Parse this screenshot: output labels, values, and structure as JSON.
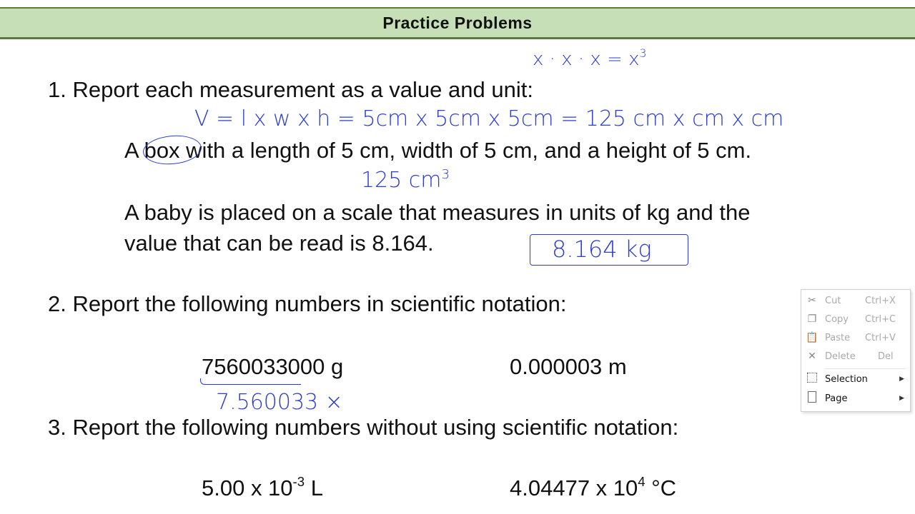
{
  "header": {
    "title": "Practice Problems"
  },
  "content": {
    "q1": "1. Report each measurement as a value and unit:",
    "q1a": "A box with a length of 5 cm, width of 5 cm, and a height of 5 cm.",
    "q1b_line1": "A baby is placed on a scale that measures in units of kg and the",
    "q1b_line2": "value  that can be read is 8.164.",
    "q2": "2. Report the following numbers in scientific notation:",
    "q2a": "7560033000 g",
    "q2b": "0.000003 m",
    "q3": "3. Report the following numbers without using scientific notation:",
    "q3a_base": "5.00 x 10",
    "q3a_exp": "-3",
    "q3a_unit": " L",
    "q3b_base": "4.04477 x 10",
    "q3b_exp": "4",
    "q3b_unit": " °C"
  },
  "handwriting": {
    "cube": "x · x · x = x",
    "cube_exp": "3",
    "volume": "V = l x w x h = 5cm x 5cm x 5cm = 125  cm x cm x cm",
    "answer1": "125 cm",
    "answer1_exp": "3",
    "answer2": "8.164 kg",
    "answer3": "7.560033 ×"
  },
  "context_menu": {
    "items": [
      {
        "label": "Cut",
        "shortcut": "Ctrl+X",
        "icon": "scissors-icon",
        "disabled": true
      },
      {
        "label": "Copy",
        "shortcut": "Ctrl+C",
        "icon": "copy-icon",
        "disabled": true
      },
      {
        "label": "Paste",
        "shortcut": "Ctrl+V",
        "icon": "paste-icon",
        "disabled": true
      },
      {
        "label": "Delete",
        "shortcut": "Del",
        "icon": "delete-icon",
        "disabled": true
      },
      {
        "label": "Selection",
        "shortcut": "",
        "icon": "selection-icon",
        "disabled": false,
        "submenu": true
      },
      {
        "label": "Page",
        "shortcut": "",
        "icon": "page-icon",
        "disabled": false,
        "submenu": true
      }
    ]
  },
  "colors": {
    "header_bg": "#c6dfb6",
    "header_border": "#5b7c3d",
    "ink": "#2b3bd6"
  }
}
